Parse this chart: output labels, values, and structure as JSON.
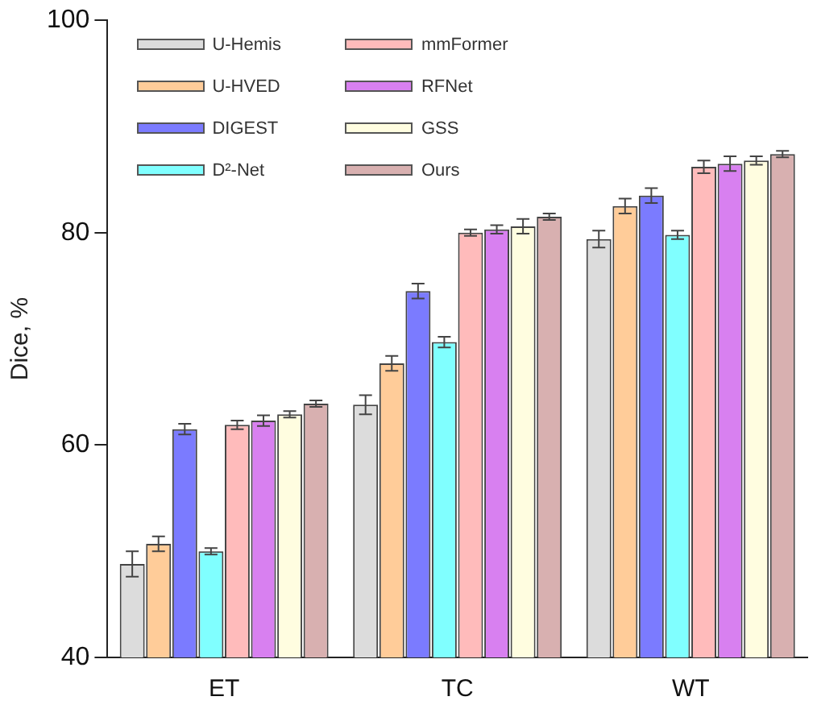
{
  "chart_data": {
    "type": "bar",
    "ylabel": "Dice, %",
    "categories": [
      "ET",
      "TC",
      "WT"
    ],
    "ylim": [
      40,
      100
    ],
    "yticks": [
      40,
      60,
      80,
      100
    ],
    "grid": false,
    "legend": "top left",
    "series": [
      {
        "name": "U-Hemis",
        "color": "#dcdcdc",
        "values": [
          48.8,
          63.8,
          79.4
        ],
        "errors": [
          1.2,
          0.9,
          0.8
        ]
      },
      {
        "name": "U-HVED",
        "color": "#ffcc99",
        "values": [
          50.7,
          67.7,
          82.5
        ],
        "errors": [
          0.7,
          0.7,
          0.7
        ]
      },
      {
        "name": "DIGEST",
        "color": "#7b7bff",
        "values": [
          61.5,
          74.5,
          83.5
        ],
        "errors": [
          0.5,
          0.7,
          0.7
        ]
      },
      {
        "name": "D²-Net",
        "color": "#80ffff",
        "values": [
          50.0,
          69.7,
          79.8
        ],
        "errors": [
          0.3,
          0.5,
          0.4
        ]
      },
      {
        "name": "mmFormer",
        "color": "#ffbbbb",
        "values": [
          61.9,
          80.0,
          86.2
        ],
        "errors": [
          0.4,
          0.3,
          0.6
        ]
      },
      {
        "name": "RFNet",
        "color": "#d880f0",
        "values": [
          62.3,
          80.3,
          86.5
        ],
        "errors": [
          0.5,
          0.4,
          0.7
        ]
      },
      {
        "name": "GSS",
        "color": "#fffde0",
        "values": [
          62.9,
          80.6,
          86.8
        ],
        "errors": [
          0.3,
          0.7,
          0.4
        ]
      },
      {
        "name": "Ours",
        "color": "#d8b0b0",
        "values": [
          63.9,
          81.5,
          87.4
        ],
        "errors": [
          0.3,
          0.3,
          0.3
        ]
      }
    ]
  }
}
